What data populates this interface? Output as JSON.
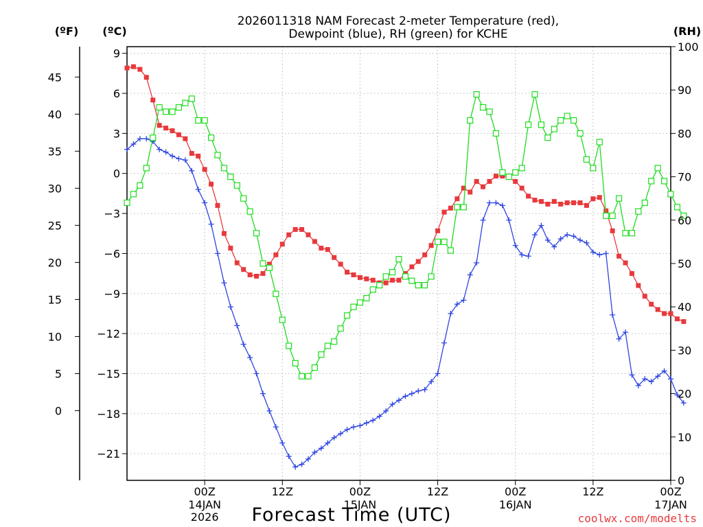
{
  "chart_data": {
    "type": "line",
    "title": "2026011318 NAM Forecast 2-meter Temperature (red),",
    "subtitle": "Dewpoint (blue), RH (green) for KCHE",
    "xlabel": "Forecast Time (UTC)",
    "y_left_f": {
      "label": "(ºF)",
      "ticks": [
        0,
        5,
        10,
        15,
        20,
        25,
        30,
        35,
        40,
        45
      ]
    },
    "y_left_c": {
      "label": "(ºC)",
      "range": [
        -23,
        9.5
      ],
      "ticks": [
        9,
        6,
        3,
        0,
        -3,
        -6,
        -9,
        -12,
        -15,
        -18,
        -21
      ]
    },
    "y_right": {
      "label": "(RH)",
      "range": [
        0,
        100
      ],
      "ticks": [
        0,
        10,
        20,
        30,
        40,
        50,
        60,
        70,
        80,
        90,
        100
      ]
    },
    "x_range_hours": [
      -6,
      78
    ],
    "x_ticks": [
      {
        "hour": 6,
        "label": "00Z",
        "date": "14JAN",
        "year": "2026"
      },
      {
        "hour": 18,
        "label": "12Z",
        "date": "",
        "year": ""
      },
      {
        "hour": 30,
        "label": "00Z",
        "date": "15JAN",
        "year": ""
      },
      {
        "hour": 42,
        "label": "12Z",
        "date": "",
        "year": ""
      },
      {
        "hour": 54,
        "label": "00Z",
        "date": "16JAN",
        "year": ""
      },
      {
        "hour": 66,
        "label": "12Z",
        "date": "",
        "year": ""
      },
      {
        "hour": 78,
        "label": "00Z",
        "date": "17JAN",
        "year": ""
      }
    ],
    "series": [
      {
        "name": "Temperature (°C)",
        "color": "#e8393c",
        "marker": "filled-square",
        "axis": "celsius",
        "values": [
          7.9,
          8.0,
          7.8,
          7.2,
          5.5,
          3.6,
          3.4,
          3.2,
          2.9,
          2.6,
          1.5,
          1.3,
          0.3,
          -0.8,
          -2.4,
          -4.5,
          -5.6,
          -6.7,
          -7.2,
          -7.6,
          -7.7,
          -7.5,
          -6.8,
          -6.1,
          -5.3,
          -4.6,
          -4.2,
          -4.2,
          -4.6,
          -5.1,
          -5.6,
          -5.7,
          -6.3,
          -6.8,
          -7.4,
          -7.6,
          -7.8,
          -7.9,
          -8.0,
          -8.2,
          -8.2,
          -8.0,
          -8.0,
          -7.5,
          -7.0,
          -6.6,
          -6.1,
          -5.4,
          -4.3,
          -2.9,
          -2.6,
          -1.9,
          -1.1,
          -1.4,
          -0.6,
          -1.0,
          -0.6,
          -0.2,
          -0.2,
          -0.3,
          -0.6,
          -1.1,
          -1.7,
          -2.0,
          -2.1,
          -2.3,
          -2.1,
          -2.3,
          -2.2,
          -2.2,
          -2.2,
          -2.4,
          -1.9,
          -1.8,
          -2.8,
          -4.3,
          -6.2,
          -6.7,
          -7.5,
          -8.4,
          -9.2,
          -9.8,
          -10.2,
          -10.5,
          -10.5,
          -10.9,
          -11.1
        ]
      },
      {
        "name": "Dewpoint (°C)",
        "color": "#2c44e0",
        "marker": "plus",
        "axis": "celsius",
        "values": [
          1.8,
          2.2,
          2.6,
          2.6,
          2.4,
          1.8,
          1.6,
          1.3,
          1.1,
          1.0,
          0.2,
          -1.2,
          -2.2,
          -3.8,
          -6.0,
          -8.2,
          -10.0,
          -11.4,
          -12.8,
          -13.8,
          -15.0,
          -16.5,
          -17.8,
          -19.0,
          -20.2,
          -21.2,
          -22.0,
          -21.8,
          -21.4,
          -20.9,
          -20.6,
          -20.2,
          -19.8,
          -19.5,
          -19.2,
          -19.0,
          -18.9,
          -18.7,
          -18.5,
          -18.2,
          -17.8,
          -17.3,
          -17.0,
          -16.7,
          -16.5,
          -16.3,
          -16.2,
          -15.6,
          -15.0,
          -12.7,
          -10.5,
          -9.8,
          -9.5,
          -7.6,
          -6.7,
          -3.5,
          -2.2,
          -2.2,
          -2.4,
          -3.5,
          -5.4,
          -6.1,
          -6.2,
          -4.6,
          -3.9,
          -5.0,
          -5.5,
          -4.9,
          -4.6,
          -4.7,
          -5.0,
          -5.2,
          -5.9,
          -6.1,
          -6.0,
          -10.6,
          -12.4,
          -11.9,
          -15.1,
          -15.9,
          -15.4,
          -15.6,
          -15.2,
          -14.8,
          -15.4,
          -16.6,
          -17.2
        ]
      },
      {
        "name": "RH (%)",
        "color": "#1cdc1c",
        "marker": "open-square",
        "axis": "rh",
        "values": [
          64,
          66,
          68,
          72,
          79,
          86,
          85,
          85,
          86,
          87,
          88,
          83,
          83,
          79,
          75,
          72,
          70,
          68,
          65,
          62,
          57,
          50,
          49,
          43,
          37,
          31,
          27,
          24,
          24,
          26,
          29,
          31,
          32,
          35,
          38,
          40,
          41,
          42,
          44,
          45,
          47,
          48,
          51,
          47,
          46,
          45,
          45,
          47,
          55,
          55,
          53,
          63,
          63,
          83,
          89,
          86,
          85,
          80,
          71,
          70,
          71,
          72,
          82,
          89,
          82,
          79,
          81,
          83,
          84,
          83,
          80,
          74,
          72,
          78,
          61,
          61,
          65,
          57,
          57,
          62,
          64,
          69,
          72,
          69,
          66,
          63,
          61
        ]
      }
    ],
    "credit": "coolwx.com/modelts"
  }
}
